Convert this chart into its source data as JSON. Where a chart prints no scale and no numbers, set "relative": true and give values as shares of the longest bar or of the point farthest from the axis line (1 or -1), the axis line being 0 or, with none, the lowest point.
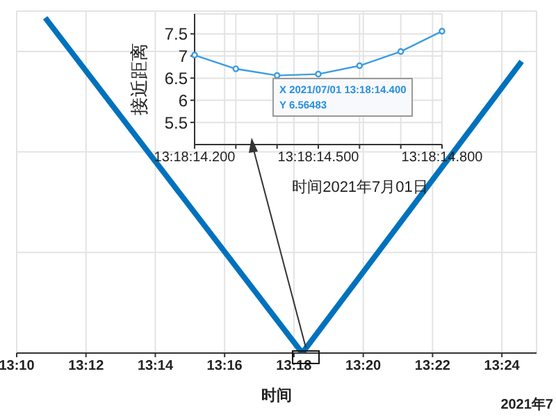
{
  "chart_data": [
    {
      "type": "line",
      "relative": true,
      "x": [
        13.1804,
        13.304,
        13.4095
      ],
      "values": [
        1,
        0,
        0.87
      ],
      "color": "#0072bd",
      "xlabel": "时间",
      "xlim": [
        13.1666667,
        13.4166667
      ],
      "xticks": [
        {
          "value": 13.1666667,
          "label": "13:10"
        },
        {
          "value": 13.2,
          "label": "13:12"
        },
        {
          "value": 13.2333333,
          "label": "13:14"
        },
        {
          "value": 13.2666667,
          "label": "13:16"
        },
        {
          "value": 13.3,
          "label": "13:18"
        },
        {
          "value": 13.3333333,
          "label": "13:20"
        },
        {
          "value": 13.3666667,
          "label": "13:22"
        },
        {
          "value": 13.4,
          "label": "13:24"
        }
      ],
      "grid": true,
      "marker": "none",
      "line_style": "solid",
      "annotations": [
        "2021年7"
      ]
    },
    {
      "type": "line",
      "categories": [
        "13:18:14.200",
        null,
        null,
        "13:18:14.500",
        null,
        null,
        "13:18:14.800"
      ],
      "values": [
        7.02,
        6.71,
        6.56,
        6.59,
        6.78,
        7.1,
        7.56
      ],
      "color": "#3d9be0",
      "xlabel": "时间2021年7月01日",
      "ylabel": "接近距离",
      "ylim": [
        5,
        7.95
      ],
      "yticks": [
        5.5,
        6,
        6.5,
        7,
        7.5
      ],
      "grid": true,
      "marker": "circle",
      "line_style": "solid",
      "annotations": [
        "X 2021/07/01 13:18:14.400\nY 6.56483"
      ]
    }
  ]
}
